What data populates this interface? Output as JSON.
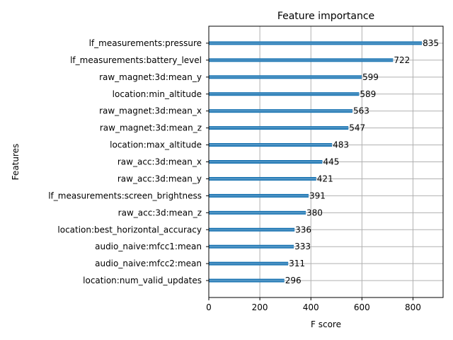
{
  "chart_data": {
    "type": "bar",
    "orientation": "horizontal",
    "title": "Feature importance",
    "xlabel": "F score",
    "ylabel": "Features",
    "xlim": [
      0,
      918
    ],
    "xticks": [
      0,
      200,
      400,
      600,
      800
    ],
    "grid": true,
    "bar_color": "#1f77b4",
    "categories": [
      "lf_measurements:pressure",
      "lf_measurements:battery_level",
      "raw_magnet:3d:mean_y",
      "location:min_altitude",
      "raw_magnet:3d:mean_x",
      "raw_magnet:3d:mean_z",
      "location:max_altitude",
      "raw_acc:3d:mean_x",
      "raw_acc:3d:mean_y",
      "lf_measurements:screen_brightness",
      "raw_acc:3d:mean_z",
      "location:best_horizontal_accuracy",
      "audio_naive:mfcc1:mean",
      "audio_naive:mfcc2:mean",
      "location:num_valid_updates"
    ],
    "values": [
      835,
      722,
      599,
      589,
      563,
      547,
      483,
      445,
      421,
      391,
      380,
      336,
      333,
      311,
      296
    ]
  }
}
